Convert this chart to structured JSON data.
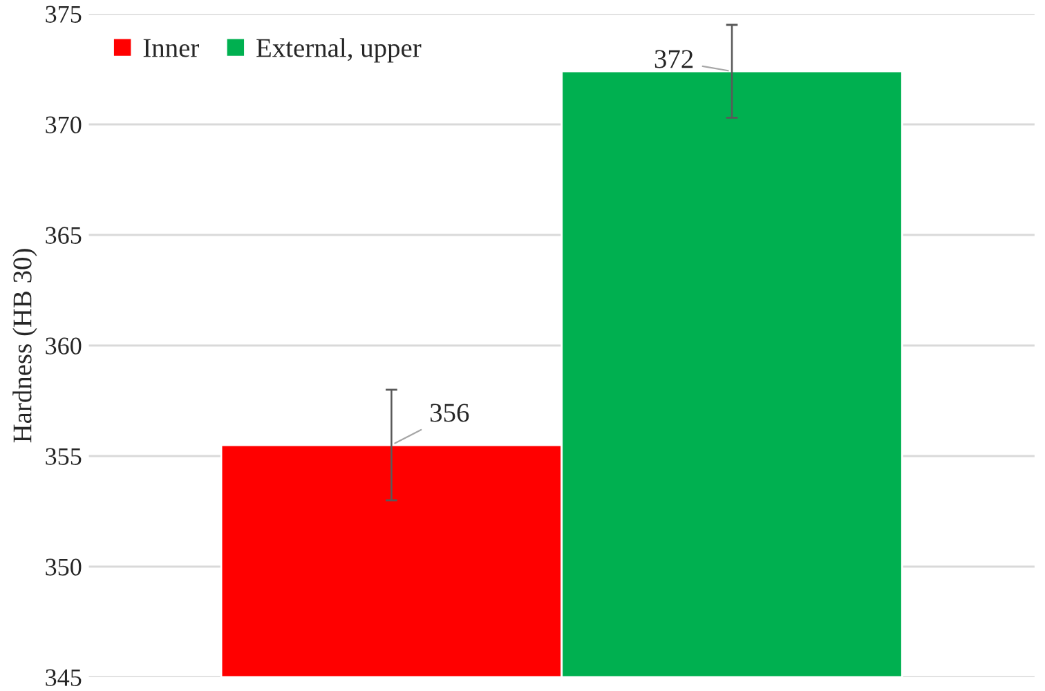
{
  "chart_data": {
    "type": "bar",
    "ylabel": "Hardness (HB 30)",
    "categories": [
      null
    ],
    "series": [
      {
        "name": "Inner",
        "color": "#ff0000",
        "values": [
          355.5
        ],
        "errors": [
          2.5
        ],
        "value_labels": [
          "356"
        ]
      },
      {
        "name": "External, upper",
        "color": "#00b050",
        "values": [
          372.4
        ],
        "errors": [
          [
            370.3,
            374.5
          ]
        ],
        "value_labels": [
          "372"
        ]
      }
    ],
    "ylim": [
      345,
      375
    ],
    "yticks": [
      345,
      350,
      355,
      360,
      365,
      370,
      375
    ],
    "grid": "y",
    "legend": "top left",
    "tick_labels": "y"
  }
}
